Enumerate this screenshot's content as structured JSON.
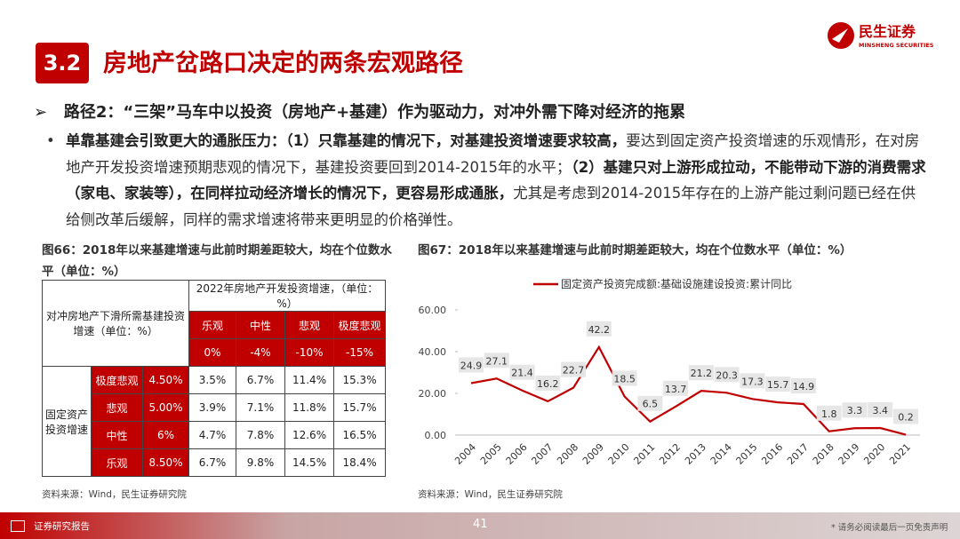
{
  "header": {
    "badge": "3.2",
    "title": "房地产岔路口决定的两条宏观路径",
    "logo_name": "民生证券",
    "logo_en": "MINSHENG SECURITIES"
  },
  "bullet": "路径2：“三架”马车中以投资（房地产+基建）作为驱动力，对冲外需下降对经济的拖累",
  "paragraph": [
    {
      "text": "单靠基建会引致更大的通胀压力：（1）只靠基建的情况下，对基建投资增速要求较高，",
      "bold": true
    },
    {
      "text": "要达到固定资产投资增速的乐观情形，在对房地产开发投资增速预期悲观的情况下，基建投资要回到2014-2015年的水平；",
      "bold": false
    },
    {
      "text": "（2）基建只对上游形成拉动，不能带动下游的消费需求（家电、家装等），在同样拉动经济增长的情况下，更容易形成通胀，",
      "bold": true
    },
    {
      "text": "尤其是考虑到2014-2015年存在的上游产能过剩问题已经在供给侧改革后缓解，同样的需求增速将带来更明显的价格弹性。",
      "bold": false
    }
  ],
  "table_caption": "图66：2018年以来基建增速与此前时期差距较大，均在个位数水平（单位：%）",
  "table": {
    "corner": "对冲房地产下滑所需基建投资增速（单位：%）",
    "header": "2022年房地产开发投资增速，（单位：%）",
    "columns": [
      "乐观",
      "中性",
      "悲观",
      "极度悲观"
    ],
    "column_values": [
      "0%",
      "-4%",
      "-10%",
      "-15%"
    ],
    "row_group": "固定资产投资增速",
    "rows": [
      [
        "极度悲观",
        "4.50%",
        "3.5%",
        "6.7%",
        "11.4%",
        "15.3%"
      ],
      [
        "悲观",
        "5.00%",
        "3.9%",
        "7.1%",
        "11.8%",
        "15.7%"
      ],
      [
        "中性",
        "6%",
        "4.7%",
        "7.8%",
        "12.6%",
        "16.5%"
      ],
      [
        "乐观",
        "8.50%",
        "6.7%",
        "9.8%",
        "14.5%",
        "18.4%"
      ]
    ]
  },
  "table_source": "资料来源：Wind，民生证券研究院",
  "chart_caption": "图67：2018年以来基建增速与此前时期差距较大，均在个位数水平（单位：%）",
  "chart_data": {
    "type": "line",
    "categories": [
      "2004",
      "2005",
      "2006",
      "2007",
      "2008",
      "2009",
      "2010",
      "2011",
      "2012",
      "2013",
      "2014",
      "2015",
      "2016",
      "2017",
      "2018",
      "2019",
      "2020",
      "2021"
    ],
    "series": [
      {
        "name": "固定资产投资完成额:基础设施建设投资:累计同比",
        "color": "#c00000",
        "values": [
          24.9,
          27.1,
          21.4,
          16.2,
          22.7,
          42.2,
          18.5,
          6.5,
          13.7,
          21.2,
          20.3,
          17.3,
          15.7,
          14.9,
          1.8,
          3.3,
          3.4,
          0.2
        ]
      }
    ],
    "ylim": [
      0,
      60
    ],
    "yticks": [
      {
        "value": 0,
        "label": "0.00"
      },
      {
        "value": 20,
        "label": "20.00"
      },
      {
        "value": 40,
        "label": "40.00"
      },
      {
        "value": 60,
        "label": "60.00"
      }
    ],
    "grid": false
  },
  "chart_source": "资料来源：Wind，民生证券研究院",
  "footer": {
    "left": "证券研究报告",
    "page": "41",
    "right": "* 请务必阅读最后一页免责声明"
  }
}
